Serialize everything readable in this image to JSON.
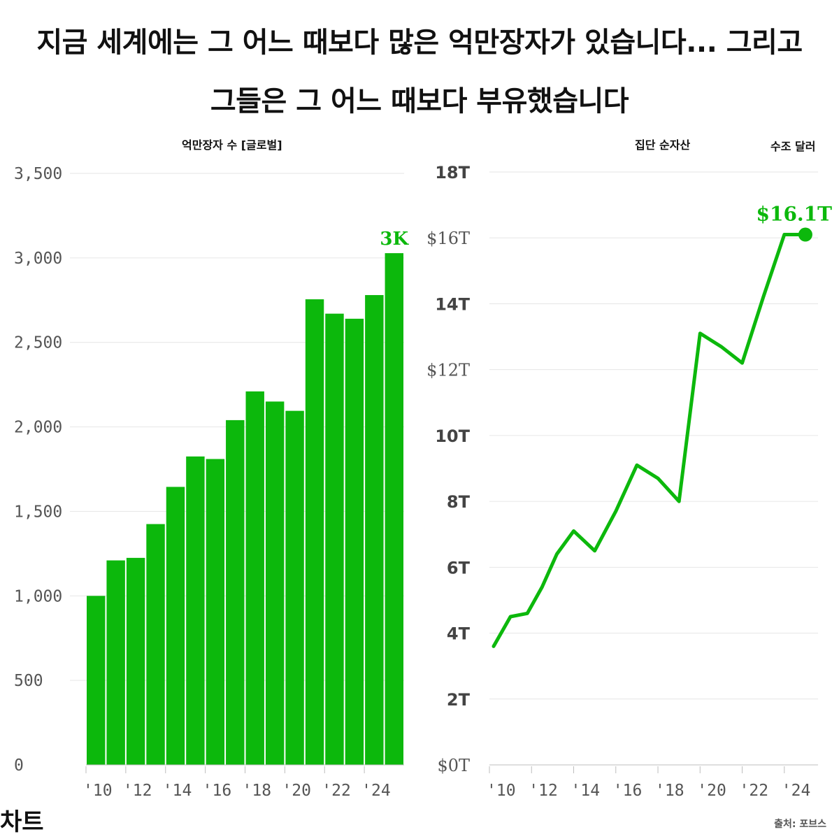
{
  "header": {
    "line1": "지금 세계에는 그 어느 때보다 많은 억만장자가 있습니다... 그리고",
    "line2": "그들은 그 어느 때보다 부유했습니다"
  },
  "colors": {
    "accent": "#0cb80c",
    "grid": "#e6e6e6",
    "axis": "#bdbdbd",
    "tick_text": "#555555"
  },
  "brand": "차트",
  "source": "출처: 포브스",
  "chart_data": [
    {
      "type": "bar",
      "title": "억만장자 수 [글로벌]",
      "categories": [
        "2010",
        "2011",
        "2012",
        "2013",
        "2014",
        "2015",
        "2016",
        "2017",
        "2018",
        "2019",
        "2020",
        "2021",
        "2022",
        "2023",
        "2024",
        "2025"
      ],
      "values": [
        1000,
        1210,
        1225,
        1425,
        1645,
        1825,
        1810,
        2040,
        2210,
        2150,
        2095,
        2755,
        2670,
        2640,
        2780,
        3028
      ],
      "ylim": [
        0,
        3500
      ],
      "y_ticks": [
        0,
        500,
        1000,
        1500,
        2000,
        2500,
        3000,
        3500
      ],
      "y_tick_labels": [
        "0",
        "500",
        "1,000",
        "1,500",
        "2,000",
        "2,500",
        "3,000",
        "3,500"
      ],
      "x_tick_labels": [
        "'10",
        "'12",
        "'14",
        "'16",
        "'18",
        "'20",
        "'22",
        "'24"
      ],
      "x_tick_positions": [
        2010,
        2012,
        2014,
        2016,
        2018,
        2020,
        2022,
        2024
      ],
      "annotation": {
        "text": "3K",
        "category": "2025"
      },
      "grid": true
    },
    {
      "type": "line",
      "title": "집단 순자산",
      "unit_label": "수조 달러",
      "x": [
        2010.2,
        2011.0,
        2011.8,
        2012.5,
        2013.2,
        2014.0,
        2015.0,
        2016.0,
        2017.0,
        2018.0,
        2019.0,
        2020.0,
        2021.0,
        2022.0,
        2023.0,
        2024.0,
        2025.0
      ],
      "y": [
        3.6,
        4.5,
        4.6,
        5.4,
        6.4,
        7.1,
        6.5,
        7.7,
        9.1,
        8.7,
        8.0,
        13.1,
        12.7,
        12.2,
        14.2,
        16.1,
        16.1
      ],
      "ylim": [
        0,
        18
      ],
      "xlim": [
        2010,
        2025.6
      ],
      "y_ticks": [
        0,
        2,
        4,
        6,
        8,
        10,
        12,
        14,
        16,
        18
      ],
      "y_tick_labels": [
        "$0T",
        "2T",
        "4T",
        "6T",
        "8T",
        "10T",
        "$12T",
        "14T",
        "$16T",
        "18T"
      ],
      "x_tick_labels": [
        "'10",
        "'12",
        "'14",
        "'16",
        "'18",
        "'20",
        "'22",
        "'24"
      ],
      "x_tick_positions": [
        2010,
        2012,
        2014,
        2016,
        2018,
        2020,
        2022,
        2024
      ],
      "annotation": {
        "text": "$16.1T",
        "x": 2025.0,
        "y": 16.1
      },
      "grid": true
    }
  ]
}
